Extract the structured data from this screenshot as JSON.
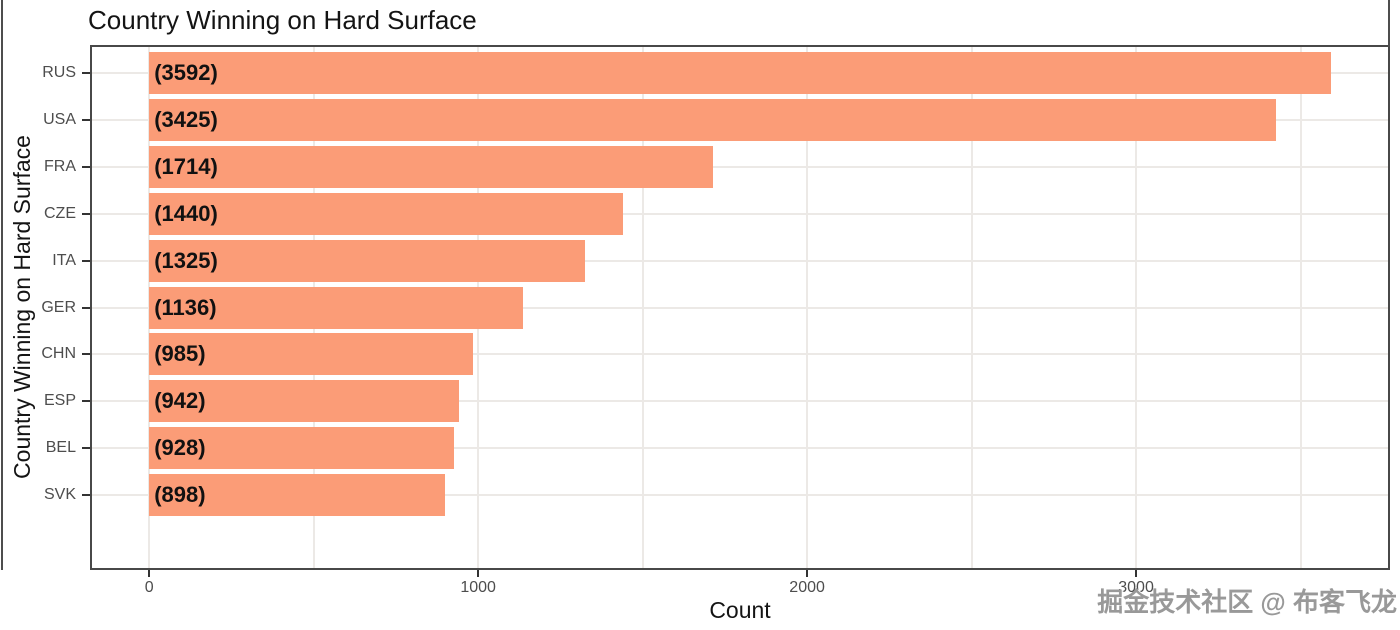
{
  "watermark": {
    "text": "掘金技术社区 @ 布客飞龙"
  },
  "chart_data": {
    "type": "bar",
    "orientation": "horizontal",
    "title": "Country Winning on Hard Surface",
    "xlabel": "Count",
    "ylabel": "Country Winning on Hard Surface",
    "categories": [
      "RUS",
      "USA",
      "FRA",
      "CZE",
      "ITA",
      "GER",
      "CHN",
      "ESP",
      "BEL",
      "SVK"
    ],
    "values": [
      3592,
      3425,
      1714,
      1440,
      1325,
      1136,
      985,
      942,
      928,
      898
    ],
    "bar_labels": [
      "(3592)",
      "(3425)",
      "(1714)",
      "(1440)",
      "(1325)",
      "(1136)",
      "(985)",
      "(942)",
      "(928)",
      "(898)"
    ],
    "x_ticks": [
      0,
      1000,
      2000,
      3000
    ],
    "x_tick_labels": [
      "0",
      "1000",
      "2000",
      "3000"
    ],
    "x_minor_ticks": [
      500,
      1500,
      2500,
      3500
    ],
    "xlim": [
      -180,
      3772
    ],
    "bar_width_fraction": 0.9,
    "row_expansion": 0.6,
    "grid": true,
    "legend": "none",
    "colors": {
      "bar_fill": "#FB9C77",
      "grid_line": "#ECE9E6",
      "panel_border": "#484848",
      "axis_text": "#4D4D4D",
      "title_text": "#141414",
      "bar_label_text": "#111111",
      "watermark_text": "#999999"
    }
  }
}
